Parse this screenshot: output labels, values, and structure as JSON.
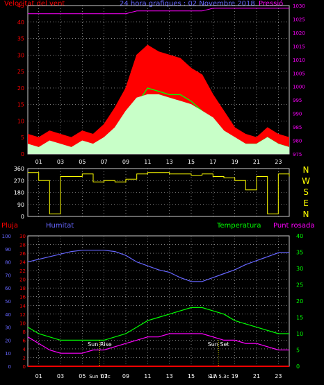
{
  "header": {
    "wind_label": "Velocitat del vent",
    "title": "24 hora grafiques : 02 Novembre 2018",
    "pressure_label": "Pressió"
  },
  "lower_header": {
    "rain_label": "Pluja",
    "humidity_label": "Humitat",
    "temperature_label": "Temperatura",
    "dewpoint_label": "Punt rosada"
  },
  "annotations": {
    "sun_rise": "Sun Rise",
    "sun_set": "Sun Set",
    "sun_rise_time": "Sun 7:3c",
    "sun_set_time": "Sun 5.3c"
  },
  "colors": {
    "wind_gust": "#ff0000",
    "wind_avg": "#00ff00",
    "wind_speed": "#c8ffc8",
    "pressure": "#ff00ff",
    "direction": "#ffff00",
    "rain": "#ff0000",
    "humidity": "#6666ff",
    "temperature": "#00ff00",
    "dewpoint": "#ff00ff",
    "grid": "#cccccc",
    "axis_text": "#ffffff"
  },
  "chart_data": [
    {
      "type": "line",
      "name": "wind-pressure",
      "title": "24 hora grafiques : 02 Novembre 2018",
      "x": [
        0,
        1,
        2,
        3,
        4,
        5,
        6,
        7,
        8,
        9,
        10,
        11,
        12,
        13,
        14,
        15,
        16,
        17,
        18,
        19,
        20,
        21,
        22,
        23,
        24
      ],
      "x_tick_labels": [
        "01",
        "03",
        "05",
        "07",
        "09",
        "11",
        "13",
        "15",
        "17",
        "19",
        "21",
        "23"
      ],
      "ylim": [
        0,
        45
      ],
      "y_ticks": [
        0,
        5,
        10,
        15,
        20,
        25,
        30,
        35,
        40,
        45
      ],
      "y2lim": [
        975,
        1030
      ],
      "y2_ticks": [
        975,
        980,
        985,
        990,
        995,
        1000,
        1005,
        1010,
        1015,
        1020,
        1025,
        1030
      ],
      "grid": true,
      "series": [
        {
          "name": "Velocitat del vent",
          "kind": "gust",
          "axis": "left",
          "values": [
            6,
            5,
            7,
            6,
            5,
            7,
            6,
            9,
            14,
            20,
            30,
            33,
            31,
            30,
            29,
            26,
            24,
            18,
            13,
            8,
            6,
            5,
            8,
            6,
            5
          ]
        },
        {
          "name": "Velocitat del vent",
          "kind": "average",
          "axis": "left",
          "values": [
            2,
            2,
            3,
            2,
            2,
            3,
            2,
            3,
            5,
            10,
            15,
            20,
            19,
            18,
            18,
            16,
            13,
            10,
            5,
            4,
            3,
            3,
            5,
            3,
            2
          ]
        },
        {
          "name": "Velocitat del vent",
          "kind": "speed",
          "axis": "left",
          "values": [
            3,
            2,
            4,
            3,
            2,
            4,
            3,
            5,
            8,
            13,
            17,
            18,
            18,
            17,
            16,
            15,
            13,
            11,
            7,
            5,
            3,
            3,
            5,
            3,
            2
          ]
        },
        {
          "name": "Pressió",
          "axis": "right",
          "values": [
            1027,
            1027,
            1027,
            1027,
            1027,
            1027,
            1027,
            1027,
            1027,
            1027,
            1028,
            1028,
            1028,
            1028,
            1028,
            1028,
            1028,
            1029,
            1029,
            1029,
            1029,
            1029,
            1029,
            1029,
            1029
          ]
        }
      ]
    },
    {
      "type": "line",
      "name": "wind-direction",
      "x": [
        0,
        1,
        2,
        3,
        4,
        5,
        6,
        7,
        8,
        9,
        10,
        11,
        12,
        13,
        14,
        15,
        16,
        17,
        18,
        19,
        20,
        21,
        22,
        23,
        24
      ],
      "ylim": [
        0,
        360
      ],
      "y_ticks": [
        0,
        90,
        180,
        270,
        360
      ],
      "right_labels": [
        "N",
        "W",
        "S",
        "E",
        "N"
      ],
      "grid": true,
      "series": [
        {
          "name": "direction",
          "values": [
            330,
            270,
            20,
            300,
            300,
            320,
            260,
            270,
            260,
            280,
            320,
            330,
            330,
            320,
            320,
            310,
            320,
            300,
            290,
            270,
            200,
            300,
            20,
            320,
            300
          ]
        }
      ]
    },
    {
      "type": "line",
      "name": "temperature-humidity",
      "x": [
        0,
        1,
        2,
        3,
        4,
        5,
        6,
        7,
        8,
        9,
        10,
        11,
        12,
        13,
        14,
        15,
        16,
        17,
        18,
        19,
        20,
        21,
        22,
        23,
        24
      ],
      "x_tick_labels": [
        "01",
        "03",
        "05",
        "07",
        "09",
        "11",
        "13",
        "15",
        "17",
        "19",
        "21",
        "23"
      ],
      "ylim": [
        0,
        30
      ],
      "y_ticks": [
        0,
        2,
        4,
        6,
        8,
        10,
        12,
        14,
        16,
        18,
        20,
        22,
        24,
        26,
        28,
        30
      ],
      "y_outer_ticks": [
        0,
        10,
        20,
        30,
        40,
        50,
        60,
        70,
        80,
        90,
        100
      ],
      "y2lim": [
        0,
        40
      ],
      "y2_ticks": [
        0,
        5,
        10,
        15,
        20,
        25,
        30,
        35,
        40
      ],
      "grid": true,
      "series": [
        {
          "name": "Pluja",
          "axis": "left",
          "scale": "0-30",
          "values": [
            0,
            0,
            0,
            0,
            0,
            0,
            0,
            0,
            0,
            0,
            0,
            0,
            0,
            0,
            0,
            0,
            0,
            0,
            0,
            0,
            0,
            0,
            0,
            0,
            0
          ]
        },
        {
          "name": "Humitat",
          "axis": "outer",
          "scale": "0-100",
          "values": [
            80,
            82,
            84,
            86,
            88,
            89,
            89,
            89,
            88,
            85,
            80,
            77,
            74,
            72,
            68,
            65,
            65,
            68,
            71,
            74,
            78,
            81,
            84,
            87,
            87
          ]
        },
        {
          "name": "Temperatura",
          "axis": "right",
          "values": [
            12,
            10,
            9,
            8,
            8,
            8,
            8,
            8,
            9,
            10,
            12,
            14,
            15,
            16,
            17,
            18,
            18,
            17,
            16,
            14,
            13,
            12,
            11,
            10,
            10
          ]
        },
        {
          "name": "Punt rosada",
          "axis": "right",
          "values": [
            9,
            7,
            5,
            4,
            4,
            4,
            5,
            5,
            6,
            7,
            8,
            9,
            9,
            10,
            10,
            10,
            10,
            9,
            8,
            8,
            7,
            7,
            6,
            5,
            5
          ]
        }
      ]
    }
  ]
}
